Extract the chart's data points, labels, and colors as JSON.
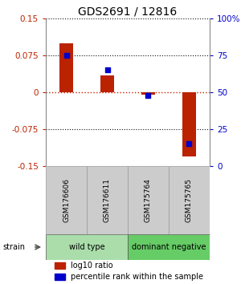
{
  "title": "GDS2691 / 12816",
  "samples": [
    "GSM176606",
    "GSM176611",
    "GSM175764",
    "GSM175765"
  ],
  "log10_ratio": [
    0.1,
    0.035,
    -0.005,
    -0.13
  ],
  "percentile_rank": [
    75,
    65,
    48,
    15
  ],
  "groups": [
    {
      "label": "wild type",
      "samples": [
        0,
        1
      ],
      "color": "#aaddaa"
    },
    {
      "label": "dominant negative",
      "samples": [
        2,
        3
      ],
      "color": "#66cc66"
    }
  ],
  "ylim": [
    -0.15,
    0.15
  ],
  "yticks_left": [
    -0.15,
    -0.075,
    0,
    0.075,
    0.15
  ],
  "yticks_right": [
    0,
    25,
    50,
    75,
    100
  ],
  "bar_color": "#bb2200",
  "scatter_color": "#0000cc",
  "zero_line_color": "#cc2200",
  "grid_line_color": "#111111",
  "sample_box_color": "#cccccc",
  "title_fontsize": 10,
  "tick_fontsize": 7.5,
  "legend_fontsize": 7
}
